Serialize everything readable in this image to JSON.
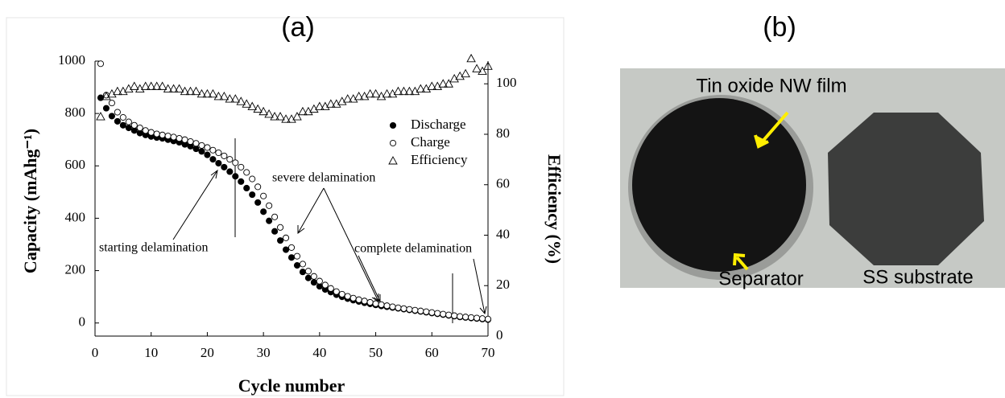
{
  "chart_data": {
    "type": "scatter",
    "title": "(a)",
    "x_label": "Cycle number",
    "y_label": "Capacity (mAhg⁻¹)",
    "y2_label": "Efficiency (%)",
    "x": [
      1,
      2,
      3,
      4,
      5,
      6,
      7,
      8,
      9,
      10,
      11,
      12,
      13,
      14,
      15,
      16,
      17,
      18,
      19,
      20,
      21,
      22,
      23,
      24,
      25,
      26,
      27,
      28,
      29,
      30,
      31,
      32,
      33,
      34,
      35,
      36,
      37,
      38,
      39,
      40,
      41,
      42,
      43,
      44,
      45,
      46,
      47,
      48,
      49,
      50,
      51,
      52,
      53,
      54,
      55,
      56,
      57,
      58,
      59,
      60,
      61,
      62,
      63,
      64,
      65,
      66,
      67,
      68,
      69,
      70
    ],
    "series": [
      {
        "name": "Discharge",
        "color": "#000000",
        "marker": "filled-circle",
        "values": [
          860,
          820,
          790,
          770,
          755,
          745,
          735,
          725,
          718,
          712,
          708,
          705,
          700,
          695,
          690,
          682,
          675,
          665,
          655,
          642,
          625,
          610,
          595,
          578,
          560,
          540,
          515,
          490,
          460,
          425,
          390,
          350,
          315,
          280,
          250,
          220,
          195,
          172,
          155,
          140,
          128,
          118,
          108,
          100,
          93,
          87,
          82,
          77,
          73,
          69,
          65,
          62,
          59,
          56,
          53,
          50,
          47,
          44,
          41,
          38,
          35,
          32,
          29,
          26,
          23,
          21,
          19,
          17,
          15,
          13
        ]
      },
      {
        "name": "Charge",
        "color": "#000000",
        "marker": "open-circle",
        "values": [
          990,
          870,
          840,
          805,
          785,
          768,
          755,
          745,
          735,
          728,
          722,
          718,
          714,
          710,
          705,
          700,
          693,
          686,
          678,
          670,
          660,
          650,
          638,
          625,
          612,
          595,
          575,
          550,
          520,
          485,
          448,
          405,
          365,
          325,
          288,
          255,
          225,
          198,
          178,
          160,
          145,
          132,
          120,
          110,
          102,
          95,
          89,
          84,
          79,
          74,
          70,
          66,
          62,
          58,
          55,
          52,
          49,
          46,
          43,
          40,
          37,
          34,
          31,
          28,
          25,
          23,
          21,
          19,
          17,
          15
        ]
      },
      {
        "name": "Efficiency",
        "color": "#000000",
        "marker": "open-triangle",
        "axis": "y2",
        "values": [
          87,
          95,
          96,
          97,
          97,
          98,
          99,
          98,
          99,
          99,
          99,
          99,
          98,
          98,
          98,
          97,
          97,
          97,
          96,
          96,
          96,
          95,
          95,
          94,
          94,
          93,
          92,
          91,
          90,
          89,
          88,
          87,
          87,
          86,
          86,
          87,
          89,
          89,
          90,
          91,
          91,
          92,
          92,
          93,
          94,
          94,
          95,
          95,
          96,
          96,
          95,
          96,
          96,
          97,
          97,
          97,
          97,
          98,
          98,
          99,
          99,
          100,
          100,
          102,
          103,
          104,
          110,
          106,
          105,
          107
        ]
      }
    ],
    "xlim": [
      0,
      70
    ],
    "xticks": [
      0,
      10,
      20,
      30,
      40,
      50,
      60,
      70
    ],
    "ylim": [
      -50,
      1000
    ],
    "yticks": [
      0,
      200,
      400,
      600,
      800,
      1000
    ],
    "y2lim": [
      0,
      109
    ],
    "y2ticks": [
      0,
      20,
      40,
      60,
      80,
      100
    ],
    "legend": "upper right",
    "annotations": [
      "starting delamination",
      "severe delamination",
      "complete delamination"
    ]
  },
  "photo": {
    "title": "(b)",
    "labels": [
      "Tin oxide NW film",
      "Separator",
      "SS substrate"
    ]
  }
}
